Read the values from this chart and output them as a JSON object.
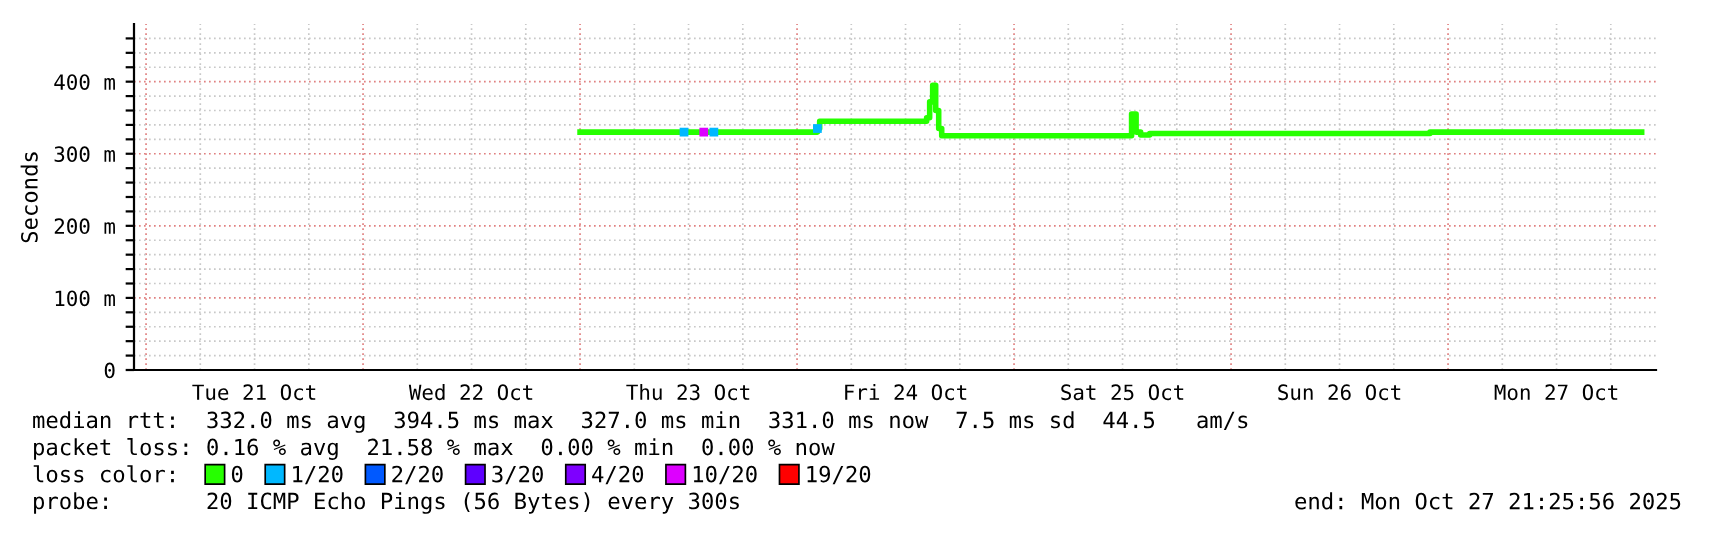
{
  "chart_data": {
    "type": "step",
    "ylabel": "Seconds",
    "xlim": [
      "2025-10-20T22:40",
      "2025-10-27T23:00"
    ],
    "xticks": [
      {
        "value": "2025-10-21T00:00",
        "label": null
      },
      {
        "value": "2025-10-21T06:00",
        "label": null
      },
      {
        "value": "2025-10-21T12:00",
        "label": "Tue 21 Oct"
      },
      {
        "value": "2025-10-21T18:00",
        "label": null
      },
      {
        "value": "2025-10-22T00:00",
        "label": null
      },
      {
        "value": "2025-10-22T06:00",
        "label": null
      },
      {
        "value": "2025-10-22T12:00",
        "label": "Wed 22 Oct"
      },
      {
        "value": "2025-10-22T18:00",
        "label": null
      },
      {
        "value": "2025-10-23T00:00",
        "label": null
      },
      {
        "value": "2025-10-23T06:00",
        "label": null
      },
      {
        "value": "2025-10-23T12:00",
        "label": "Thu 23 Oct"
      },
      {
        "value": "2025-10-23T18:00",
        "label": null
      },
      {
        "value": "2025-10-24T00:00",
        "label": null
      },
      {
        "value": "2025-10-24T06:00",
        "label": null
      },
      {
        "value": "2025-10-24T12:00",
        "label": "Fri 24 Oct"
      },
      {
        "value": "2025-10-24T18:00",
        "label": null
      },
      {
        "value": "2025-10-25T00:00",
        "label": null
      },
      {
        "value": "2025-10-25T06:00",
        "label": null
      },
      {
        "value": "2025-10-25T12:00",
        "label": "Sat 25 Oct"
      },
      {
        "value": "2025-10-25T18:00",
        "label": null
      },
      {
        "value": "2025-10-26T00:00",
        "label": null
      },
      {
        "value": "2025-10-26T06:00",
        "label": null
      },
      {
        "value": "2025-10-26T12:00",
        "label": "Sun 26 Oct"
      },
      {
        "value": "2025-10-26T18:00",
        "label": null
      },
      {
        "value": "2025-10-27T00:00",
        "label": null
      },
      {
        "value": "2025-10-27T06:00",
        "label": null
      },
      {
        "value": "2025-10-27T12:00",
        "label": "Mon 27 Oct"
      },
      {
        "value": "2025-10-27T18:00",
        "label": null
      }
    ],
    "ylim": [
      0,
      480
    ],
    "yticks": [
      {
        "value": 0,
        "label": "0"
      },
      {
        "value": 20,
        "label": null
      },
      {
        "value": 40,
        "label": null
      },
      {
        "value": 60,
        "label": null
      },
      {
        "value": 80,
        "label": null
      },
      {
        "value": 100,
        "label": "100 m"
      },
      {
        "value": 120,
        "label": null
      },
      {
        "value": 140,
        "label": null
      },
      {
        "value": 160,
        "label": null
      },
      {
        "value": 180,
        "label": null
      },
      {
        "value": 200,
        "label": "200 m"
      },
      {
        "value": 220,
        "label": null
      },
      {
        "value": 240,
        "label": null
      },
      {
        "value": 260,
        "label": null
      },
      {
        "value": 280,
        "label": null
      },
      {
        "value": 300,
        "label": "300 m"
      },
      {
        "value": 320,
        "label": null
      },
      {
        "value": 340,
        "label": null
      },
      {
        "value": 360,
        "label": null
      },
      {
        "value": 380,
        "label": null
      },
      {
        "value": 400,
        "label": "400 m"
      },
      {
        "value": 420,
        "label": null
      },
      {
        "value": 440,
        "label": null
      },
      {
        "value": 460,
        "label": null
      }
    ],
    "grid": true,
    "legend": "bottom",
    "legend_title": "loss color:",
    "series": [
      {
        "name": "0",
        "color": "#26ff00",
        "x": [
          "2025-10-23T00:00",
          "2025-10-24T02:15",
          "2025-10-24T02:30",
          "2025-10-24T14:20",
          "2025-10-24T14:40",
          "2025-10-24T15:00",
          "2025-10-24T15:20",
          "2025-10-24T15:40",
          "2025-10-24T16:00",
          "2025-10-25T13:00",
          "2025-10-25T13:30",
          "2025-10-25T14:00",
          "2025-10-25T15:00",
          "2025-10-26T22:00",
          "2025-10-27T21:25"
        ],
        "values": [
          330,
          335,
          345,
          350,
          372,
          395,
          360,
          335,
          325,
          355,
          330,
          326,
          328,
          330,
          330
        ]
      },
      {
        "name": "1/20",
        "color": "#00b8ff",
        "type": "scatter",
        "marker": "square",
        "x": [
          "2025-10-23T11:30",
          "2025-10-23T14:48",
          "2025-10-24T02:15"
        ],
        "values": [
          330,
          330,
          335
        ]
      },
      {
        "name": "2/20",
        "color": "#0059ff",
        "type": "scatter",
        "marker": "square"
      },
      {
        "name": "3/20",
        "color": "#5e00ff",
        "type": "scatter",
        "marker": "square"
      },
      {
        "name": "4/20",
        "color": "#7e00ff",
        "type": "scatter",
        "marker": "square"
      },
      {
        "name": "10/20",
        "color": "#dd00ff",
        "type": "scatter",
        "marker": "square",
        "x": [
          "2025-10-23T13:41"
        ],
        "values": [
          330
        ]
      },
      {
        "name": "19/20",
        "color": "#ff0000",
        "type": "scatter",
        "marker": "square"
      }
    ],
    "annotations": [
      "median rtt:  332.0 ms avg  394.5 ms max  327.0 ms min  331.0 ms now  7.5 ms sd  44.5   am/s",
      "packet loss: 0.16 % avg  21.58 % max  0.00 % min  0.00 % now",
      "probe:       20 ICMP Echo Pings (56 Bytes) every 300s",
      "end: Mon Oct 27 21:25:56 2025"
    ]
  }
}
